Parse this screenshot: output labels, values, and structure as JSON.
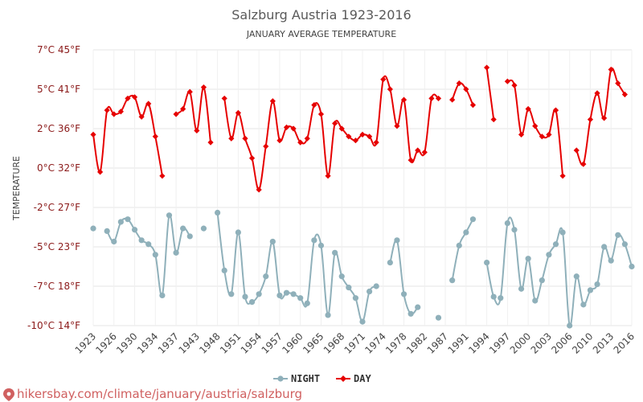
{
  "chart_data": {
    "type": "line",
    "title": "Salzburg Austria 1923-2016",
    "subtitle": "JANUARY AVERAGE TEMPERATURE",
    "ylabel": "TEMPERATURE",
    "ylim": [
      -10,
      7
    ],
    "y_ticks": [
      {
        "value": 7,
        "label": "7°C 45°F"
      },
      {
        "value": 5,
        "label": "5°C 41°F"
      },
      {
        "value": 2,
        "label": "2°C 36°F"
      },
      {
        "value": 0,
        "label": "0°C 32°F"
      },
      {
        "value": -2,
        "label": "-2°C 27°F"
      },
      {
        "value": -5,
        "label": "-5°C 23°F"
      },
      {
        "value": -7,
        "label": "-7°C 18°F"
      },
      {
        "value": -10,
        "label": "-10°C 14°F"
      }
    ],
    "x_tick_labels": [
      "1923",
      "1926",
      "1930",
      "1934",
      "1937",
      "1943",
      "1948",
      "1951",
      "1954",
      "1957",
      "1960",
      "1965",
      "1968",
      "1971",
      "1974",
      "1978",
      "1982",
      "1987",
      "1991",
      "1994",
      "1997",
      "2000",
      "2003",
      "2006",
      "2010",
      "2013",
      "2016"
    ],
    "x_tick_index": [
      0,
      3,
      6,
      9,
      12,
      15,
      18,
      21,
      24,
      27,
      30,
      33,
      36,
      39,
      42,
      45,
      48,
      51,
      54,
      57,
      60,
      63,
      66,
      69,
      72,
      75,
      78
    ],
    "grid": true,
    "legend_position": "bottom",
    "series": [
      {
        "name": "NIGHT",
        "color": "#8fb0ba",
        "values": [
          -3.6,
          null,
          -3.8,
          -4.6,
          -3.1,
          -2.9,
          -3.7,
          -4.5,
          -4.8,
          -5.4,
          -7.7,
          -2.6,
          -5.3,
          -3.6,
          -4.2,
          null,
          -3.6,
          null,
          -2.4,
          -6.2,
          -7.6,
          -3.9,
          -7.8,
          -8.2,
          -7.6,
          -6.5,
          -4.6,
          -7.7,
          -7.5,
          -7.6,
          -7.9,
          -8.3,
          -4.5,
          -4.9,
          -9.2,
          -5.3,
          -6.5,
          -7.1,
          -7.9,
          -9.7,
          -7.4,
          -7.0,
          null,
          -5.8,
          -4.5,
          -7.6,
          -9.1,
          -8.6,
          null,
          null,
          -9.4,
          null,
          -6.7,
          -4.9,
          -3.9,
          -2.9,
          null,
          -5.8,
          -7.8,
          -7.9,
          -3.2,
          -3.7,
          -7.2,
          -5.6,
          -8.1,
          -6.7,
          -5.4,
          -4.8,
          -3.9,
          -10,
          -6.5,
          -8.4,
          -7.3,
          -6.9,
          -5.0,
          -5.7,
          -4.1,
          -4.8,
          -6.0
        ]
      },
      {
        "name": "DAY",
        "color": "#e60000",
        "values": [
          1.7,
          -0.2,
          3.4,
          3.1,
          3.3,
          4.3,
          4.4,
          2.9,
          3.9,
          1.6,
          -0.4,
          null,
          3.1,
          3.5,
          4.8,
          1.9,
          5.1,
          1.3,
          null,
          4.3,
          1.5,
          3.2,
          1.5,
          0.5,
          -1.1,
          1.1,
          4.1,
          1.4,
          2.1,
          2.0,
          1.3,
          1.5,
          3.8,
          3.1,
          -0.4,
          2.4,
          2.0,
          1.6,
          1.4,
          1.7,
          1.6,
          1.3,
          5.5,
          5.0,
          2.2,
          4.2,
          0.4,
          0.9,
          0.8,
          4.3,
          4.3,
          null,
          4.2,
          5.3,
          5.0,
          3.8,
          null,
          6.1,
          2.7,
          null,
          5.4,
          5.2,
          1.7,
          3.5,
          2.2,
          1.6,
          1.7,
          3.4,
          -0.4,
          null,
          0.9,
          0.2,
          2.7,
          4.7,
          2.8,
          6.0,
          5.3,
          4.6,
          null
        ]
      }
    ]
  },
  "watermark": "hikersbay.com/climate/january/austria/salzburg"
}
